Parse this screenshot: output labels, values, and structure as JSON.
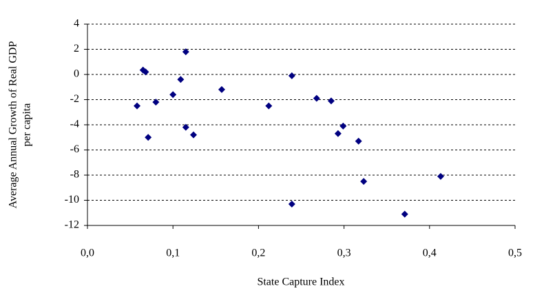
{
  "chart_data": {
    "type": "scatter",
    "xlabel": "State Capture Index",
    "ylabel": [
      "Average Annual Growth of Real GDP",
      "per capita"
    ],
    "color": "#000080",
    "grid": true,
    "x": [
      0.058,
      0.065,
      0.068,
      0.071,
      0.08,
      0.1,
      0.109,
      0.115,
      0.115,
      0.124,
      0.157,
      0.212,
      0.239,
      0.239,
      0.268,
      0.285,
      0.293,
      0.299,
      0.317,
      0.323,
      0.371,
      0.413
    ],
    "values": [
      -2.5,
      0.35,
      0.2,
      -5.0,
      -2.2,
      -1.6,
      -0.4,
      1.8,
      -4.2,
      -4.8,
      -1.2,
      -2.5,
      -0.1,
      -10.3,
      -1.9,
      -2.1,
      -4.7,
      -4.1,
      -5.3,
      -8.5,
      -11.1,
      -8.1
    ],
    "xlim": [
      0,
      0.5
    ],
    "xticks": [
      {
        "value": 0,
        "label": "0,0"
      },
      {
        "value": 0.1,
        "label": "0,1"
      },
      {
        "value": 0.2,
        "label": "0,2"
      },
      {
        "value": 0.3,
        "label": "0,3"
      },
      {
        "value": 0.4,
        "label": "0,4"
      },
      {
        "value": 0.5,
        "label": "0,5"
      }
    ],
    "ylim": [
      -12,
      4
    ],
    "yticks": [
      -12,
      -10,
      -8,
      -6,
      -4,
      -2,
      0,
      2,
      4
    ]
  }
}
